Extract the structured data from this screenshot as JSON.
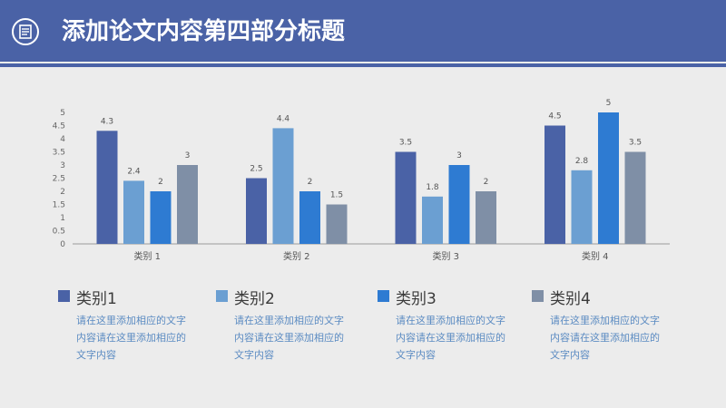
{
  "header": {
    "title": "添加论文内容第四部分标题",
    "bg_color": "#4a62a6",
    "logo_icon": "document-icon"
  },
  "chart_data": {
    "type": "bar",
    "categories": [
      "类别 1",
      "类别 2",
      "类别 3",
      "类别 4"
    ],
    "series": [
      {
        "name": "类别1",
        "values": [
          4.3,
          2.5,
          3.5,
          4.5
        ],
        "labels": [
          "4.3",
          "2.5",
          "3.5",
          "4.5"
        ],
        "color": "#4a62a6"
      },
      {
        "name": "类别2",
        "values": [
          2.4,
          4.4,
          1.8,
          2.8
        ],
        "labels": [
          "2.4",
          "4.4",
          "1.8",
          "2.8"
        ],
        "color": "#6b9fd2"
      },
      {
        "name": "类别3",
        "values": [
          2,
          2,
          3,
          5
        ],
        "labels": [
          "2",
          "2",
          "3",
          "5"
        ],
        "color": "#2e7bd2"
      },
      {
        "name": "类别4",
        "values": [
          3,
          1.5,
          2,
          3.5
        ],
        "labels": [
          "3",
          "1.5",
          "2",
          "3.5"
        ],
        "color": "#7f8fa6"
      }
    ],
    "yticks": [
      "0",
      "0.5",
      "1",
      "1.5",
      "2",
      "2.5",
      "3",
      "3.5",
      "4",
      "4.5",
      "5"
    ],
    "ylim": [
      0,
      5
    ],
    "grid": false,
    "legend_placement": "bottom"
  },
  "legend": {
    "items": [
      {
        "label": "类别1",
        "desc": "请在这里添加相应的文字内容请在这里添加相应的文字内容",
        "color": "#4a62a6"
      },
      {
        "label": "类别2",
        "desc": "请在这里添加相应的文字内容请在这里添加相应的文字内容",
        "color": "#6b9fd2"
      },
      {
        "label": "类别3",
        "desc": "请在这里添加相应的文字内容请在这里添加相应的文字内容",
        "color": "#2e7bd2"
      },
      {
        "label": "类别4",
        "desc": "请在这里添加相应的文字内容请在这里添加相应的文字内容",
        "color": "#7f8fa6"
      }
    ]
  }
}
